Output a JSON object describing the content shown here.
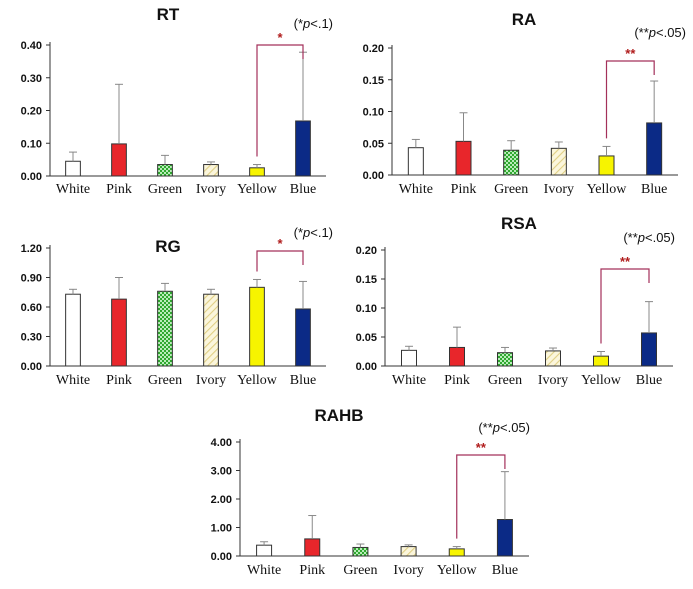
{
  "figure": {
    "colors": {
      "White": "#ffffff",
      "Pink": "#e8262b",
      "Green": "green-pattern",
      "Ivory": "ivory-pattern",
      "Yellow": "#f7f400",
      "Blue": "#0b2a86",
      "significance": "#b01c1c",
      "bracket": "#a3305a"
    }
  },
  "chart_data": [
    {
      "id": "RT",
      "type": "bar",
      "title": "RT",
      "annotation": {
        "prefix": "(*",
        "p": "p",
        "suffix": "<.1)"
      },
      "significance_marker": "*",
      "significance_pair": [
        "Yellow",
        "Blue"
      ],
      "categories": [
        "White",
        "Pink",
        "Green",
        "Ivory",
        "Yellow",
        "Blue"
      ],
      "values": [
        0.045,
        0.098,
        0.035,
        0.035,
        0.025,
        0.168
      ],
      "errors": [
        0.028,
        0.182,
        0.028,
        0.008,
        0.01,
        0.21
      ],
      "yticks": [
        "0.00",
        "0.10",
        "0.20",
        "0.30",
        "0.40"
      ],
      "ylim": [
        0,
        0.4
      ]
    },
    {
      "id": "RA",
      "type": "bar",
      "title": "RA",
      "annotation": {
        "prefix": "(**",
        "p": "p",
        "suffix": "<.05)"
      },
      "significance_marker": "**",
      "significance_pair": [
        "Yellow",
        "Blue"
      ],
      "categories": [
        "White",
        "Pink",
        "Green",
        "Ivory",
        "Yellow",
        "Blue"
      ],
      "values": [
        0.043,
        0.053,
        0.039,
        0.042,
        0.03,
        0.082
      ],
      "errors": [
        0.013,
        0.045,
        0.015,
        0.01,
        0.015,
        0.066
      ],
      "yticks": [
        "0.00",
        "0.05",
        "0.10",
        "0.15",
        "0.20"
      ],
      "ylim": [
        0,
        0.2
      ]
    },
    {
      "id": "RG",
      "type": "bar",
      "title": "RG",
      "annotation": {
        "prefix": "(*",
        "p": "p",
        "suffix": "<.1)"
      },
      "significance_marker": "*",
      "significance_pair": [
        "Yellow",
        "Blue"
      ],
      "categories": [
        "White",
        "Pink",
        "Green",
        "Ivory",
        "Yellow",
        "Blue"
      ],
      "values": [
        0.73,
        0.68,
        0.76,
        0.73,
        0.8,
        0.58
      ],
      "errors": [
        0.05,
        0.22,
        0.08,
        0.05,
        0.08,
        0.28
      ],
      "yticks": [
        "0.00",
        "0.30",
        "0.60",
        "0.90",
        "1.20"
      ],
      "ylim": [
        0,
        1.2
      ]
    },
    {
      "id": "RSA",
      "type": "bar",
      "title": "RSA",
      "annotation": {
        "prefix": "(**",
        "p": "p",
        "suffix": "<.05)"
      },
      "significance_marker": "**",
      "significance_pair": [
        "Yellow",
        "Blue"
      ],
      "categories": [
        "White",
        "Pink",
        "Green",
        "Ivory",
        "Yellow",
        "Blue"
      ],
      "values": [
        0.027,
        0.032,
        0.023,
        0.026,
        0.017,
        0.057
      ],
      "errors": [
        0.007,
        0.035,
        0.009,
        0.005,
        0.008,
        0.054
      ],
      "yticks": [
        "0.00",
        "0.05",
        "0.10",
        "0.15",
        "0.20"
      ],
      "ylim": [
        0,
        0.2
      ]
    },
    {
      "id": "RAHB",
      "type": "bar",
      "title": "RAHB",
      "annotation": {
        "prefix": "(**",
        "p": "p",
        "suffix": "<.05)"
      },
      "significance_marker": "**",
      "significance_pair": [
        "Yellow",
        "Blue"
      ],
      "categories": [
        "White",
        "Pink",
        "Green",
        "Ivory",
        "Yellow",
        "Blue"
      ],
      "values": [
        0.38,
        0.6,
        0.3,
        0.33,
        0.25,
        1.28
      ],
      "errors": [
        0.12,
        0.82,
        0.12,
        0.06,
        0.08,
        1.68
      ],
      "yticks": [
        "0.00",
        "1.00",
        "2.00",
        "3.00",
        "4.00"
      ],
      "ylim": [
        0,
        4
      ]
    }
  ]
}
